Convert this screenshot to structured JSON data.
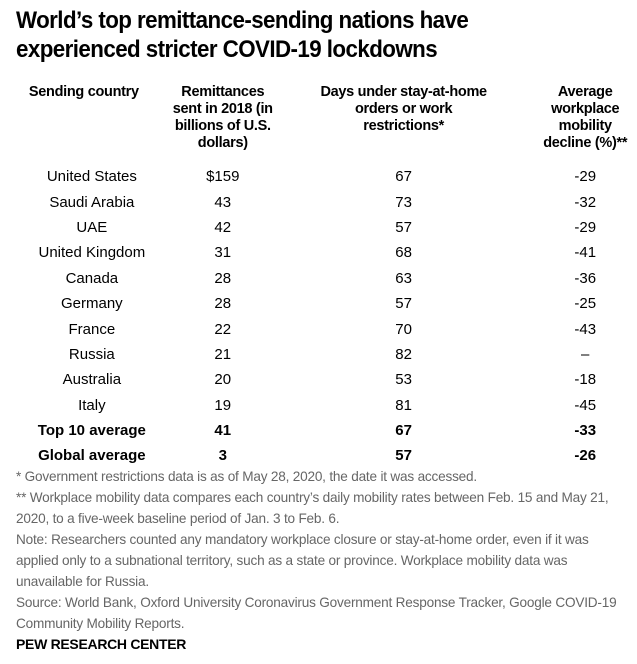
{
  "chart_data": {
    "type": "table",
    "title": "World’s top remittance-sending nations have experienced stricter COVID-19 lockdowns",
    "columns": [
      "Sending country",
      "Remittances sent in 2018 (in billions of U.S. dollars)",
      "Days under stay-at-home orders or work restrictions*",
      "Average workplace mobility decline (%)**"
    ],
    "rows": [
      [
        "United States",
        "$159",
        "67",
        "-29"
      ],
      [
        "Saudi Arabia",
        "43",
        "73",
        "-32"
      ],
      [
        "UAE",
        "42",
        "57",
        "-29"
      ],
      [
        "United Kingdom",
        "31",
        "68",
        "-41"
      ],
      [
        "Canada",
        "28",
        "63",
        "-36"
      ],
      [
        "Germany",
        "28",
        "57",
        "-25"
      ],
      [
        "France",
        "22",
        "70",
        "-43"
      ],
      [
        "Russia",
        "21",
        "82",
        "–"
      ],
      [
        "Australia",
        "20",
        "53",
        "-18"
      ],
      [
        "Italy",
        "19",
        "81",
        "-45"
      ],
      [
        "Top 10 average",
        "41",
        "67",
        "-33"
      ],
      [
        "Global average",
        "3",
        "57",
        "-26"
      ]
    ],
    "bold_rows": [
      10,
      11
    ]
  },
  "notes": [
    "* Government restrictions data is as of May 28, 2020, the date it was accessed.",
    "** Workplace mobility data compares each country’s daily mobility rates between Feb. 15 and May 21, 2020, to a five-week baseline period of Jan. 3 to Feb. 6.",
    "Note: Researchers counted any mandatory workplace closure or stay-at-home order, even if it was applied only to a subnational territory, such as a state or province. Workplace mobility data was unavailable for Russia.",
    "Source: World Bank, Oxford University Coronavirus Government Response Tracker, Google COVID-19 Community Mobility Reports."
  ],
  "brand": "PEW RESEARCH CENTER"
}
